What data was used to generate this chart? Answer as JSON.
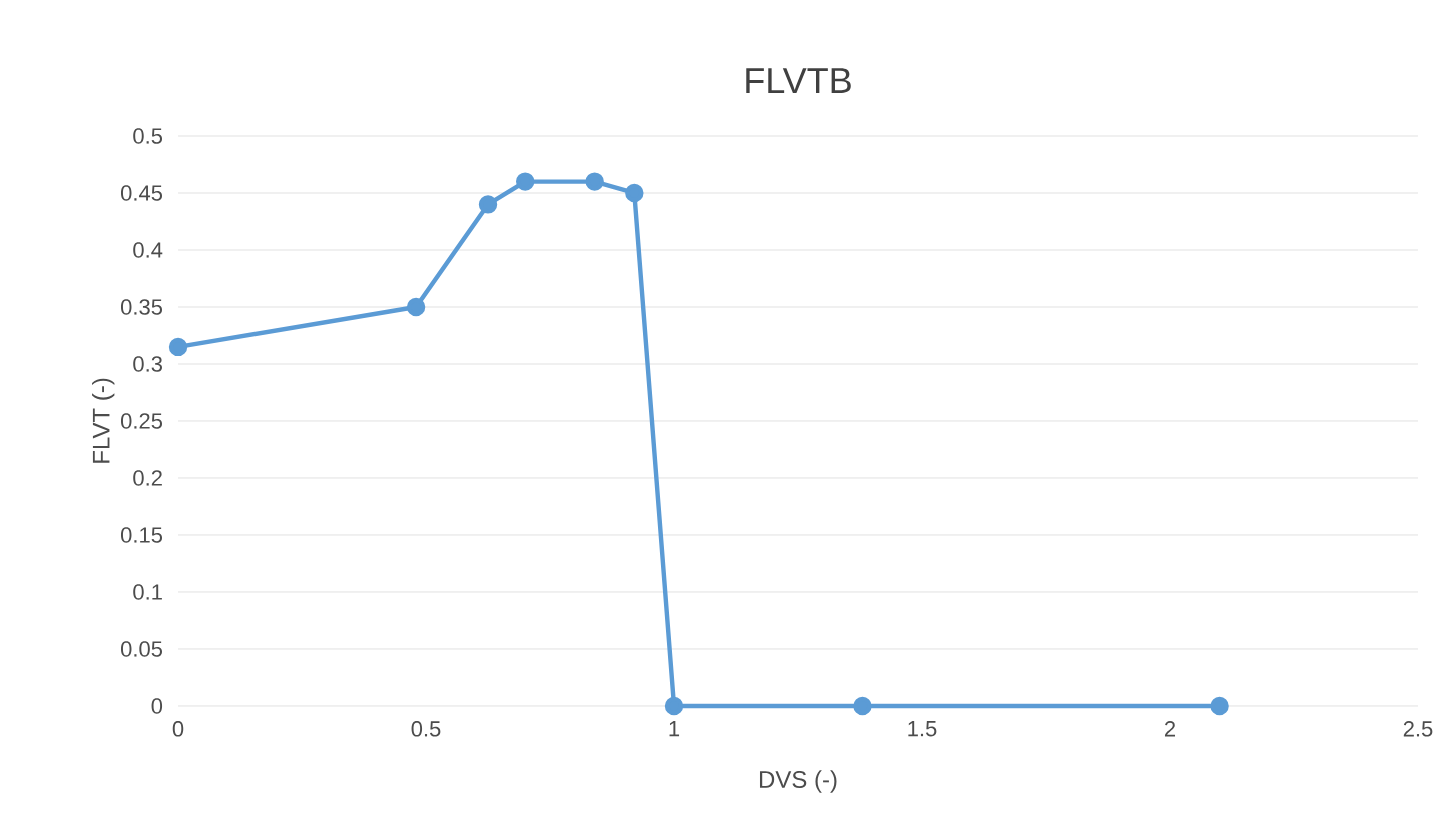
{
  "chart_data": {
    "type": "line",
    "title": "FLVTB",
    "xlabel": "DVS (-)",
    "ylabel": "FLVT  (-)",
    "x": [
      0,
      0.48,
      0.625,
      0.7,
      0.84,
      0.92,
      1.0,
      1.38,
      2.1
    ],
    "series": [
      {
        "color": "#5b9bd5",
        "values": [
          0.315,
          0.35,
          0.44,
          0.46,
          0.46,
          0.45,
          0,
          0,
          0
        ]
      }
    ],
    "xlim": [
      0,
      2.5
    ],
    "ylim": [
      0,
      0.5
    ],
    "xticks": [
      0,
      0.5,
      1,
      1.5,
      2,
      2.5
    ],
    "yticks": [
      0,
      0.05,
      0.1,
      0.15,
      0.2,
      0.25,
      0.3,
      0.35,
      0.4,
      0.45,
      0.5
    ],
    "grid": "y",
    "marker": "circle",
    "line_style": "solid"
  }
}
